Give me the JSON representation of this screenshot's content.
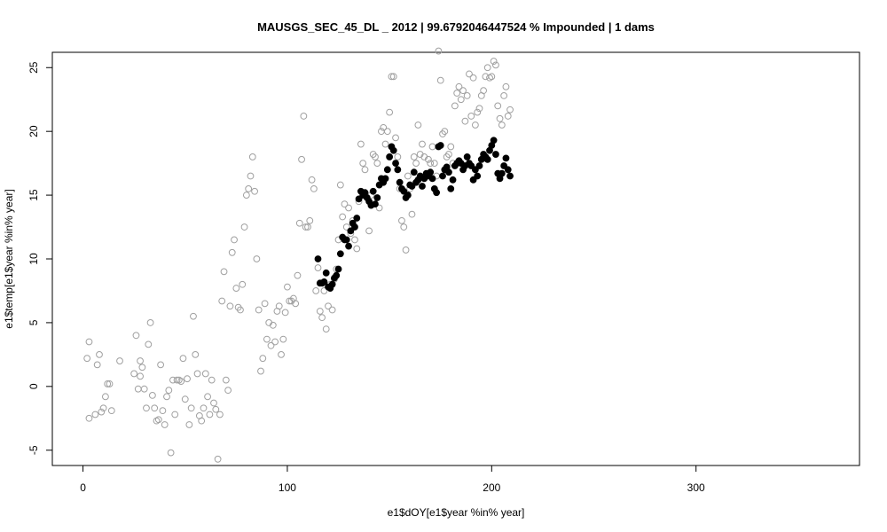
{
  "chart_data": {
    "type": "scatter",
    "title": "MAUSGS_SEC_45_DL _ 2012   |   99.6792046447524  % Impounded |  1  dams",
    "xlabel": "e1$dOY[e1$year %in% year]",
    "ylabel": "e1$temp[e1$year %in% year]",
    "xlim": [
      -15,
      380
    ],
    "ylim": [
      -6.2,
      26.2
    ],
    "x_ticks": [
      0,
      100,
      200,
      300
    ],
    "x_tick_labels": [
      "0",
      "100",
      "200",
      "300"
    ],
    "y_ticks": [
      -5,
      0,
      5,
      10,
      15,
      20,
      25
    ],
    "y_tick_labels": [
      "-5",
      "0",
      "5",
      "10",
      "15",
      "20",
      "25"
    ],
    "grid": false,
    "legend": "none",
    "series": [
      {
        "color": "#a0a0a0",
        "marker": "open-circle",
        "points": [
          [
            2,
            2.2
          ],
          [
            3,
            3.5
          ],
          [
            3,
            -2.5
          ],
          [
            6,
            -2.2
          ],
          [
            7,
            1.7
          ],
          [
            8,
            2.5
          ],
          [
            9,
            -2.0
          ],
          [
            10,
            -1.7
          ],
          [
            11,
            -0.8
          ],
          [
            12,
            0.2
          ],
          [
            13,
            0.2
          ],
          [
            14,
            -1.9
          ],
          [
            18,
            2.0
          ],
          [
            25,
            1.0
          ],
          [
            26,
            4.0
          ],
          [
            27,
            -0.2
          ],
          [
            28,
            0.8
          ],
          [
            28,
            2.0
          ],
          [
            29,
            1.5
          ],
          [
            30,
            -0.2
          ],
          [
            31,
            -1.7
          ],
          [
            32,
            3.3
          ],
          [
            33,
            5.0
          ],
          [
            34,
            -0.7
          ],
          [
            35,
            -1.7
          ],
          [
            36,
            -2.7
          ],
          [
            37,
            -2.6
          ],
          [
            38,
            1.7
          ],
          [
            39,
            -1.9
          ],
          [
            40,
            -3.0
          ],
          [
            41,
            -0.8
          ],
          [
            42,
            -0.3
          ],
          [
            43,
            -5.2
          ],
          [
            44,
            0.5
          ],
          [
            45,
            -2.2
          ],
          [
            46,
            0.5
          ],
          [
            47,
            0.5
          ],
          [
            48,
            0.4
          ],
          [
            49,
            2.2
          ],
          [
            50,
            -1.0
          ],
          [
            51,
            0.6
          ],
          [
            52,
            -3.0
          ],
          [
            53,
            -1.7
          ],
          [
            54,
            5.5
          ],
          [
            55,
            2.5
          ],
          [
            56,
            1.0
          ],
          [
            57,
            -2.3
          ],
          [
            58,
            -2.7
          ],
          [
            59,
            -1.7
          ],
          [
            60,
            1.0
          ],
          [
            61,
            -0.8
          ],
          [
            62,
            -2.2
          ],
          [
            63,
            0.5
          ],
          [
            64,
            -1.3
          ],
          [
            65,
            -1.8
          ],
          [
            66,
            -5.7
          ],
          [
            67,
            -2.2
          ],
          [
            68,
            6.7
          ],
          [
            69,
            9.0
          ],
          [
            70,
            0.5
          ],
          [
            71,
            -0.3
          ],
          [
            72,
            6.3
          ],
          [
            73,
            10.5
          ],
          [
            74,
            11.5
          ],
          [
            75,
            7.7
          ],
          [
            76,
            6.2
          ],
          [
            77,
            6.0
          ],
          [
            78,
            8.0
          ],
          [
            79,
            12.5
          ],
          [
            80,
            15.0
          ],
          [
            81,
            15.5
          ],
          [
            82,
            16.5
          ],
          [
            83,
            18.0
          ],
          [
            84,
            15.3
          ],
          [
            85,
            10.0
          ],
          [
            86,
            6.0
          ],
          [
            87,
            1.2
          ],
          [
            88,
            2.2
          ],
          [
            89,
            6.5
          ],
          [
            90,
            3.7
          ],
          [
            91,
            5.0
          ],
          [
            92,
            3.2
          ],
          [
            93,
            4.8
          ],
          [
            94,
            3.5
          ],
          [
            95,
            5.9
          ],
          [
            96,
            6.3
          ],
          [
            97,
            2.5
          ],
          [
            98,
            3.7
          ],
          [
            99,
            5.8
          ],
          [
            100,
            7.8
          ],
          [
            101,
            6.7
          ],
          [
            102,
            6.7
          ],
          [
            103,
            6.9
          ],
          [
            104,
            6.5
          ],
          [
            105,
            8.7
          ],
          [
            106,
            12.8
          ],
          [
            107,
            17.8
          ],
          [
            108,
            21.2
          ],
          [
            109,
            12.5
          ],
          [
            110,
            12.5
          ],
          [
            111,
            13.0
          ],
          [
            112,
            16.2
          ],
          [
            113,
            15.5
          ],
          [
            114,
            7.5
          ],
          [
            115,
            9.3
          ],
          [
            116,
            5.9
          ],
          [
            117,
            5.4
          ],
          [
            118,
            7.5
          ],
          [
            119,
            4.5
          ],
          [
            120,
            6.3
          ],
          [
            121,
            8.0
          ],
          [
            122,
            6.0
          ],
          [
            123,
            8.4
          ],
          [
            124,
            9.2
          ],
          [
            125,
            11.5
          ],
          [
            126,
            15.8
          ],
          [
            127,
            13.3
          ],
          [
            128,
            14.3
          ],
          [
            129,
            12.5
          ],
          [
            130,
            14.0
          ],
          [
            131,
            12.0
          ],
          [
            132,
            13.0
          ],
          [
            133,
            11.5
          ],
          [
            134,
            10.8
          ],
          [
            135,
            14.5
          ],
          [
            136,
            19.0
          ],
          [
            137,
            17.5
          ],
          [
            138,
            17.0
          ],
          [
            139,
            14.8
          ],
          [
            140,
            12.2
          ],
          [
            141,
            15.0
          ],
          [
            142,
            18.2
          ],
          [
            143,
            18.0
          ],
          [
            144,
            17.5
          ],
          [
            145,
            14.0
          ],
          [
            146,
            20.0
          ],
          [
            147,
            20.3
          ],
          [
            148,
            19.0
          ],
          [
            149,
            20.0
          ],
          [
            150,
            21.5
          ],
          [
            151,
            24.3
          ],
          [
            152,
            24.3
          ],
          [
            153,
            19.5
          ],
          [
            154,
            18.0
          ],
          [
            155,
            15.5
          ],
          [
            156,
            13.0
          ],
          [
            157,
            12.5
          ],
          [
            158,
            10.7
          ],
          [
            159,
            16.5
          ],
          [
            160,
            15.5
          ],
          [
            161,
            13.5
          ],
          [
            162,
            18.0
          ],
          [
            163,
            17.5
          ],
          [
            164,
            20.5
          ],
          [
            165,
            18.2
          ],
          [
            166,
            19.0
          ],
          [
            167,
            18.0
          ],
          [
            168,
            16.5
          ],
          [
            169,
            17.8
          ],
          [
            170,
            17.5
          ],
          [
            171,
            18.8
          ],
          [
            172,
            17.5
          ],
          [
            173,
            16.5
          ],
          [
            174,
            26.3
          ],
          [
            175,
            24.0
          ],
          [
            176,
            19.8
          ],
          [
            177,
            20.0
          ],
          [
            178,
            18.0
          ],
          [
            179,
            18.2
          ],
          [
            180,
            18.8
          ],
          [
            181,
            17.5
          ],
          [
            182,
            22.0
          ],
          [
            183,
            23.0
          ],
          [
            184,
            23.5
          ],
          [
            185,
            22.5
          ],
          [
            186,
            23.2
          ],
          [
            187,
            20.8
          ],
          [
            188,
            22.8
          ],
          [
            189,
            24.5
          ],
          [
            190,
            21.2
          ],
          [
            191,
            24.2
          ],
          [
            192,
            20.5
          ],
          [
            193,
            21.5
          ],
          [
            194,
            21.8
          ],
          [
            195,
            22.8
          ],
          [
            196,
            23.2
          ],
          [
            197,
            24.3
          ],
          [
            198,
            25.0
          ],
          [
            199,
            24.2
          ],
          [
            200,
            24.3
          ],
          [
            201,
            25.5
          ],
          [
            202,
            25.2
          ],
          [
            203,
            22.0
          ],
          [
            204,
            21.0
          ],
          [
            205,
            20.5
          ],
          [
            206,
            22.8
          ],
          [
            207,
            23.5
          ],
          [
            208,
            21.2
          ],
          [
            209,
            21.7
          ]
        ]
      },
      {
        "color": "#000000",
        "marker": "filled-circle",
        "points": [
          [
            115,
            10.0
          ],
          [
            116,
            8.1
          ],
          [
            117,
            8.1
          ],
          [
            118,
            8.2
          ],
          [
            119,
            8.9
          ],
          [
            120,
            7.8
          ],
          [
            121,
            7.7
          ],
          [
            122,
            8.0
          ],
          [
            123,
            8.5
          ],
          [
            124,
            8.7
          ],
          [
            125,
            9.2
          ],
          [
            126,
            10.4
          ],
          [
            127,
            11.7
          ],
          [
            128,
            11.5
          ],
          [
            129,
            11.5
          ],
          [
            130,
            11.0
          ],
          [
            131,
            12.2
          ],
          [
            132,
            12.8
          ],
          [
            133,
            12.5
          ],
          [
            134,
            13.2
          ],
          [
            135,
            14.7
          ],
          [
            136,
            15.3
          ],
          [
            137,
            15.0
          ],
          [
            138,
            15.2
          ],
          [
            139,
            14.8
          ],
          [
            140,
            14.5
          ],
          [
            141,
            14.2
          ],
          [
            142,
            15.3
          ],
          [
            143,
            14.3
          ],
          [
            144,
            14.8
          ],
          [
            145,
            15.8
          ],
          [
            146,
            16.3
          ],
          [
            147,
            16.0
          ],
          [
            148,
            16.3
          ],
          [
            149,
            17.0
          ],
          [
            150,
            18.0
          ],
          [
            151,
            18.8
          ],
          [
            152,
            18.5
          ],
          [
            153,
            17.5
          ],
          [
            154,
            17.0
          ],
          [
            155,
            16.0
          ],
          [
            156,
            15.5
          ],
          [
            157,
            15.3
          ],
          [
            158,
            14.8
          ],
          [
            159,
            15.0
          ],
          [
            160,
            15.8
          ],
          [
            161,
            15.7
          ],
          [
            162,
            16.8
          ],
          [
            163,
            16.0
          ],
          [
            164,
            16.2
          ],
          [
            165,
            16.5
          ],
          [
            166,
            15.7
          ],
          [
            167,
            16.3
          ],
          [
            168,
            16.7
          ],
          [
            169,
            16.5
          ],
          [
            170,
            16.8
          ],
          [
            171,
            16.3
          ],
          [
            172,
            15.5
          ],
          [
            173,
            15.2
          ],
          [
            174,
            18.8
          ],
          [
            175,
            18.9
          ],
          [
            176,
            16.5
          ],
          [
            177,
            17.0
          ],
          [
            178,
            17.2
          ],
          [
            179,
            16.8
          ],
          [
            180,
            15.5
          ],
          [
            181,
            16.2
          ],
          [
            182,
            17.3
          ],
          [
            183,
            17.5
          ],
          [
            184,
            17.7
          ],
          [
            185,
            17.5
          ],
          [
            186,
            17.0
          ],
          [
            187,
            17.3
          ],
          [
            188,
            18.0
          ],
          [
            189,
            17.5
          ],
          [
            190,
            17.3
          ],
          [
            191,
            16.2
          ],
          [
            192,
            17.0
          ],
          [
            193,
            16.5
          ],
          [
            194,
            17.3
          ],
          [
            195,
            17.8
          ],
          [
            196,
            18.2
          ],
          [
            197,
            18.0
          ],
          [
            198,
            17.8
          ],
          [
            199,
            18.5
          ],
          [
            200,
            18.9
          ],
          [
            201,
            19.3
          ],
          [
            202,
            18.2
          ],
          [
            203,
            16.7
          ],
          [
            204,
            16.3
          ],
          [
            205,
            16.7
          ],
          [
            206,
            17.3
          ],
          [
            207,
            17.9
          ],
          [
            208,
            17.0
          ],
          [
            209,
            16.5
          ]
        ]
      }
    ]
  }
}
